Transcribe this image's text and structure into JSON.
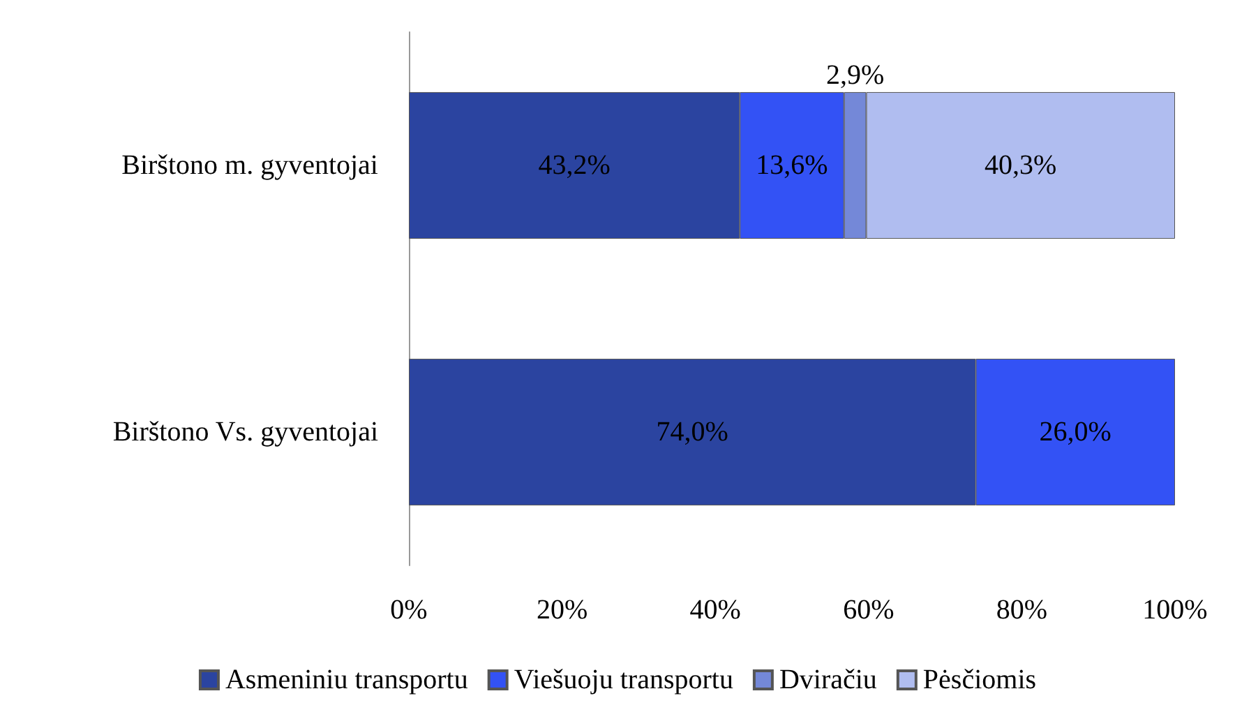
{
  "chart_data": {
    "type": "bar",
    "orientation": "horizontal",
    "stacked": true,
    "categories": [
      "Birštono m. gyventojai",
      "Birštono Vs. gyventojai"
    ],
    "series": [
      {
        "name": "Asmeniniu transportu",
        "color": "#2b44a0",
        "values": [
          43.2,
          74.0
        ],
        "value_labels": [
          "43,2%",
          "74,0%"
        ]
      },
      {
        "name": "Viešuoju transportu",
        "color": "#3352f5",
        "values": [
          13.6,
          26.0
        ],
        "value_labels": [
          "13,6%",
          "26,0%"
        ]
      },
      {
        "name": "Dviračiu",
        "color": "#7488d8",
        "values": [
          2.9,
          null
        ],
        "value_labels": [
          "2,9%",
          null
        ]
      },
      {
        "name": "Pėsčiomis",
        "color": "#b0bdf0",
        "values": [
          40.3,
          null
        ],
        "value_labels": [
          "40,3%",
          null
        ]
      }
    ],
    "xlim": [
      0,
      100
    ],
    "xticks": [
      {
        "value": 0,
        "label": "0%"
      },
      {
        "value": 20,
        "label": "20%"
      },
      {
        "value": 40,
        "label": "40%"
      },
      {
        "value": 60,
        "label": "60%"
      },
      {
        "value": 80,
        "label": "80%"
      },
      {
        "value": 100,
        "label": "100%"
      }
    ],
    "grid": false,
    "legend": "bottom"
  }
}
